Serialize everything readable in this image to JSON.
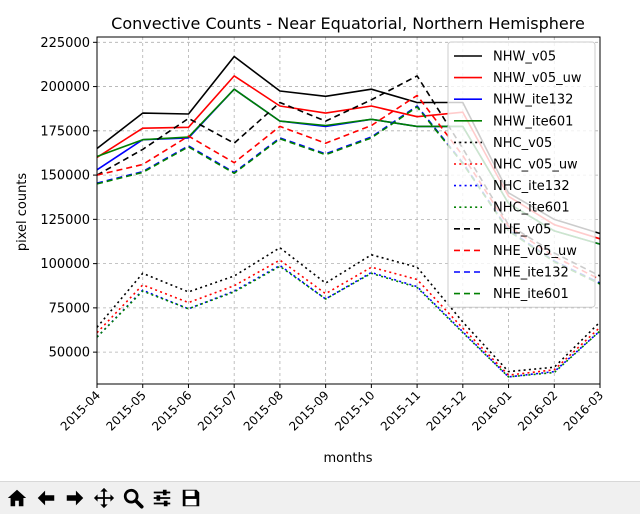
{
  "chart_data": {
    "type": "line",
    "title": "Convective Counts - Near Equatorial, Northern Hemisphere",
    "xlabel": "months",
    "ylabel": "pixel counts",
    "categories": [
      "2015-04",
      "2015-05",
      "2015-06",
      "2015-07",
      "2015-08",
      "2015-09",
      "2015-10",
      "2015-11",
      "2015-12",
      "2016-01",
      "2016-02",
      "2016-03"
    ],
    "yticks": [
      "50000",
      "75000",
      "100000",
      "125000",
      "150000",
      "175000",
      "200000",
      "225000"
    ],
    "ytick_values": [
      50000,
      75000,
      100000,
      125000,
      150000,
      175000,
      200000,
      225000
    ],
    "ylim": [
      32000,
      228000
    ],
    "grid": true,
    "legend_position": "top-right",
    "series": [
      {
        "name": "NHW_v05",
        "color": "#000000",
        "style": "solid",
        "values": [
          165000,
          185000,
          184500,
          217000,
          197500,
          194500,
          198500,
          191000,
          191000,
          140000,
          125000,
          117000
        ]
      },
      {
        "name": "NHW_v05_uw",
        "color": "#ff0000",
        "style": "solid",
        "values": [
          160000,
          176500,
          177000,
          206000,
          189000,
          185000,
          189000,
          183000,
          185500,
          138000,
          122000,
          114000
        ]
      },
      {
        "name": "NHW_ite132",
        "color": "#0000ff",
        "style": "solid",
        "values": [
          153000,
          170000,
          171000,
          198500,
          180500,
          177500,
          181500,
          177500,
          177500,
          134000,
          118500,
          111000
        ]
      },
      {
        "name": "NHW_ite601",
        "color": "#008000",
        "style": "solid",
        "values": [
          160500,
          170000,
          171500,
          198500,
          180500,
          178000,
          181500,
          177500,
          177500,
          134000,
          118500,
          111000
        ]
      },
      {
        "name": "NHC_v05",
        "color": "#000000",
        "style": "dotted",
        "values": [
          64000,
          94500,
          84000,
          93000,
          109000,
          89000,
          105000,
          98000,
          67000,
          39000,
          41500,
          67000
        ]
      },
      {
        "name": "NHC_v05_uw",
        "color": "#ff0000",
        "style": "dotted",
        "values": [
          61000,
          88000,
          78000,
          87500,
          102000,
          83000,
          98000,
          91000,
          63500,
          37000,
          40000,
          64000
        ]
      },
      {
        "name": "NHC_ite132",
        "color": "#0000ff",
        "style": "dotted",
        "values": [
          58500,
          85000,
          74500,
          84500,
          99000,
          80000,
          95000,
          87000,
          61500,
          36000,
          39000,
          62000
        ]
      },
      {
        "name": "NHC_ite601",
        "color": "#008000",
        "style": "dotted",
        "values": [
          58500,
          84500,
          74500,
          84000,
          98500,
          80000,
          94500,
          86500,
          61000,
          36000,
          38500,
          62000
        ]
      },
      {
        "name": "NHE_v05",
        "color": "#000000",
        "style": "dashed",
        "values": [
          150000,
          164500,
          182000,
          168000,
          191000,
          180500,
          192500,
          206000,
          165000,
          122000,
          106000,
          93000
        ]
      },
      {
        "name": "NHE_v05_uw",
        "color": "#ff0000",
        "style": "dashed",
        "values": [
          150000,
          156000,
          172000,
          157000,
          177500,
          168000,
          178000,
          195000,
          161000,
          121000,
          104000,
          91000
        ]
      },
      {
        "name": "NHE_ite132",
        "color": "#0000ff",
        "style": "dashed",
        "values": [
          145500,
          152000,
          166500,
          151500,
          171000,
          162000,
          171500,
          189000,
          157000,
          119000,
          101500,
          89000
        ]
      },
      {
        "name": "NHE_ite601",
        "color": "#008000",
        "style": "dashed",
        "values": [
          145000,
          151500,
          166000,
          151000,
          170500,
          161500,
          171000,
          188500,
          156500,
          118500,
          101000,
          88500
        ]
      }
    ]
  },
  "toolbar": {
    "buttons": [
      {
        "name": "home-button",
        "icon": "home-icon"
      },
      {
        "name": "back-button",
        "icon": "arrow-left-icon"
      },
      {
        "name": "forward-button",
        "icon": "arrow-right-icon"
      },
      {
        "name": "pan-button",
        "icon": "move-icon"
      },
      {
        "name": "zoom-button",
        "icon": "magnifier-icon"
      },
      {
        "name": "configure-subplots-button",
        "icon": "sliders-icon"
      },
      {
        "name": "save-button",
        "icon": "floppy-disk-icon"
      }
    ]
  }
}
